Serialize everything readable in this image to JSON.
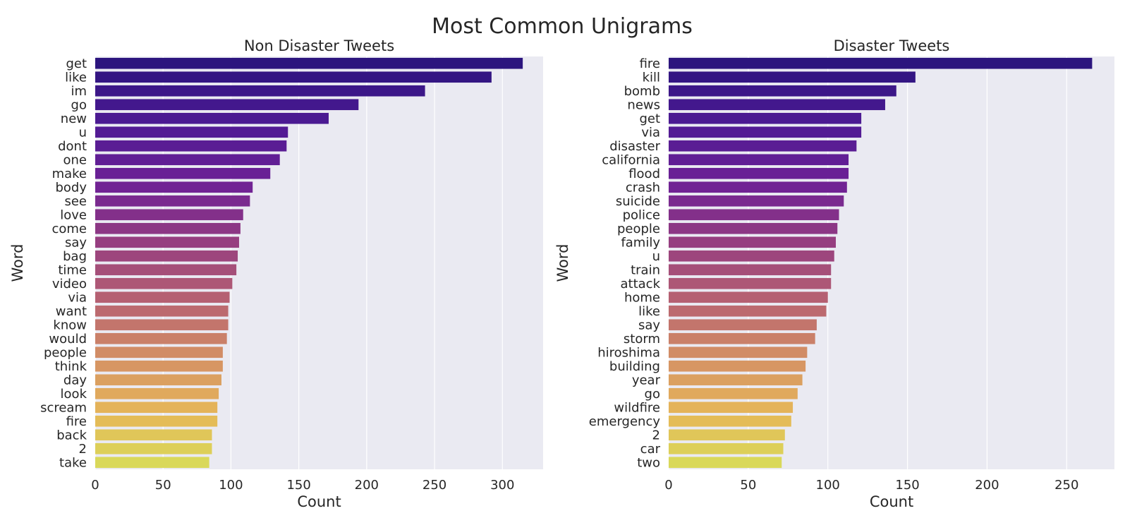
{
  "figure_title": "Most Common Unigrams",
  "chart_data": [
    {
      "type": "bar",
      "orientation": "horizontal",
      "title": "Non Disaster Tweets",
      "xlabel": "Count",
      "ylabel": "Word",
      "xlim": [
        0,
        330
      ],
      "xticks": [
        0,
        50,
        100,
        150,
        200,
        250,
        300
      ],
      "grid": true,
      "palette": "plasma",
      "categories": [
        "get",
        "like",
        "im",
        "go",
        "new",
        "u",
        "dont",
        "one",
        "make",
        "body",
        "see",
        "love",
        "come",
        "say",
        "bag",
        "time",
        "video",
        "via",
        "want",
        "know",
        "would",
        "people",
        "think",
        "day",
        "look",
        "scream",
        "fire",
        "back",
        "2",
        "take"
      ],
      "values": [
        315,
        292,
        243,
        194,
        172,
        142,
        141,
        136,
        129,
        116,
        114,
        109,
        107,
        106,
        105,
        104,
        101,
        99,
        98,
        98,
        97,
        94,
        94,
        93,
        91,
        90,
        90,
        86,
        86,
        84
      ]
    },
    {
      "type": "bar",
      "orientation": "horizontal",
      "title": "Disaster Tweets",
      "xlabel": "Count",
      "ylabel": "Word",
      "xlim": [
        0,
        280
      ],
      "xticks": [
        0,
        50,
        100,
        150,
        200,
        250
      ],
      "grid": true,
      "palette": "plasma",
      "categories": [
        "fire",
        "kill",
        "bomb",
        "news",
        "get",
        "via",
        "disaster",
        "california",
        "flood",
        "crash",
        "suicide",
        "police",
        "people",
        "family",
        "u",
        "train",
        "attack",
        "home",
        "like",
        "say",
        "storm",
        "hiroshima",
        "building",
        "year",
        "go",
        "wildfire",
        "emergency",
        "2",
        "car",
        "two"
      ],
      "values": [
        266,
        155,
        143,
        136,
        121,
        121,
        118,
        113,
        113,
        112,
        110,
        107,
        106,
        105,
        104,
        102,
        102,
        100,
        99,
        93,
        92,
        87,
        86,
        84,
        81,
        78,
        77,
        73,
        72,
        71
      ]
    }
  ]
}
